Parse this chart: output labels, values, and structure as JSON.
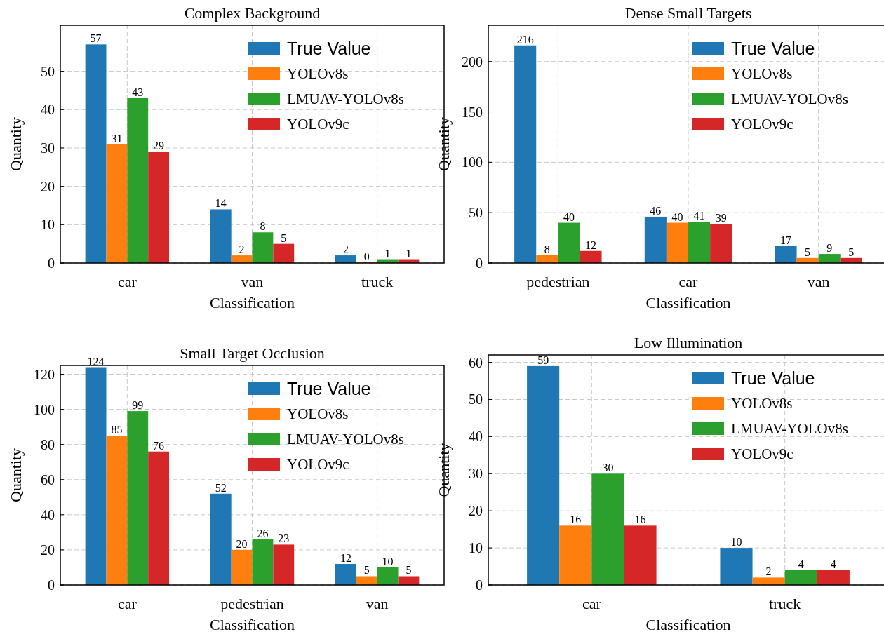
{
  "chart_data": [
    {
      "type": "bar",
      "title": "Complex Background",
      "xlabel": "Classification",
      "ylabel": "Quantity",
      "categories": [
        "car",
        "van",
        "truck"
      ],
      "series": [
        {
          "name": "True Value",
          "color": "#1f77b4",
          "values": [
            57,
            14,
            2
          ]
        },
        {
          "name": "YOLOv8s",
          "color": "#ff7f0e",
          "values": [
            31,
            2,
            0
          ]
        },
        {
          "name": "LMUAV-YOLOv8s",
          "color": "#2ca02c",
          "values": [
            43,
            8,
            1
          ]
        },
        {
          "name": "YOLOv9c",
          "color": "#d62728",
          "values": [
            29,
            5,
            1
          ]
        }
      ],
      "ylim": [
        0,
        62
      ],
      "yticks": [
        0,
        10,
        20,
        30,
        40,
        50
      ],
      "grid": true,
      "legend": "top right",
      "data_labels": true
    },
    {
      "type": "bar",
      "title": "Dense Small Targets",
      "xlabel": "Classification",
      "ylabel": "Quantity",
      "categories": [
        "pedestrian",
        "car",
        "van"
      ],
      "series": [
        {
          "name": "True Value",
          "color": "#1f77b4",
          "values": [
            216,
            46,
            17
          ]
        },
        {
          "name": "YOLOv8s",
          "color": "#ff7f0e",
          "values": [
            8,
            40,
            5
          ]
        },
        {
          "name": "LMUAV-YOLOv8s",
          "color": "#2ca02c",
          "values": [
            40,
            41,
            9
          ]
        },
        {
          "name": "YOLOv9c",
          "color": "#d62728",
          "values": [
            12,
            39,
            5
          ]
        }
      ],
      "ylim": [
        0,
        236
      ],
      "yticks": [
        0,
        50,
        100,
        150,
        200
      ],
      "grid": true,
      "legend": "top right",
      "data_labels": true
    },
    {
      "type": "bar",
      "title": "Small Target Occlusion",
      "xlabel": "Classification",
      "ylabel": "Quantity",
      "categories": [
        "car",
        "pedestrian",
        "van"
      ],
      "series": [
        {
          "name": "True Value",
          "color": "#1f77b4",
          "values": [
            124,
            52,
            12
          ]
        },
        {
          "name": "YOLOv8s",
          "color": "#ff7f0e",
          "values": [
            85,
            20,
            5
          ]
        },
        {
          "name": "LMUAV-YOLOv8s",
          "color": "#2ca02c",
          "values": [
            99,
            26,
            10
          ]
        },
        {
          "name": "YOLOv9c",
          "color": "#d62728",
          "values": [
            76,
            23,
            5
          ]
        }
      ],
      "ylim": [
        0,
        125
      ],
      "yticks": [
        0,
        20,
        40,
        60,
        80,
        100,
        120
      ],
      "grid": true,
      "legend": "top right",
      "data_labels": true
    },
    {
      "type": "bar",
      "title": "Low Illumination",
      "xlabel": "Classification",
      "ylabel": "Quantity",
      "categories": [
        "car",
        "truck"
      ],
      "series": [
        {
          "name": "True Value",
          "color": "#1f77b4",
          "values": [
            59,
            10
          ]
        },
        {
          "name": "YOLOv8s",
          "color": "#ff7f0e",
          "values": [
            16,
            2
          ]
        },
        {
          "name": "LMUAV-YOLOv8s",
          "color": "#2ca02c",
          "values": [
            30,
            4
          ]
        },
        {
          "name": "YOLOv9c",
          "color": "#d62728",
          "values": [
            16,
            4
          ]
        }
      ],
      "ylim": [
        0,
        62
      ],
      "yticks": [
        0,
        10,
        20,
        30,
        40,
        50,
        60
      ],
      "grid": true,
      "legend": "top right",
      "data_labels": true
    }
  ]
}
